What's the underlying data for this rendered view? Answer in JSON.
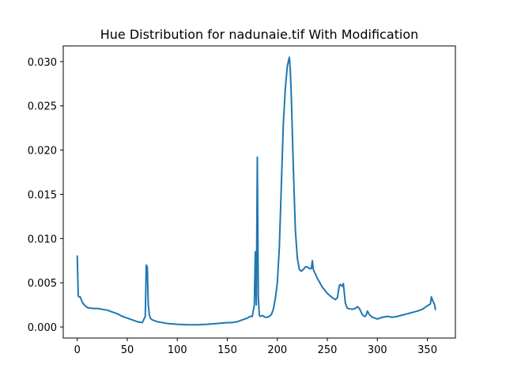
{
  "chart_data": {
    "type": "line",
    "title": "Hue Distribution for nadunaie.tif With Modification",
    "xlabel": "",
    "ylabel": "",
    "xlim": [
      -14,
      378
    ],
    "ylim": [
      -0.00125,
      0.03178
    ],
    "xticks": [
      0,
      50,
      100,
      150,
      200,
      250,
      300,
      350
    ],
    "xtick_labels": [
      "0",
      "50",
      "100",
      "150",
      "200",
      "250",
      "300",
      "350"
    ],
    "yticks": [
      0.0,
      0.005,
      0.01,
      0.015,
      0.02,
      0.025,
      0.03
    ],
    "ytick_labels": [
      "0.000",
      "0.005",
      "0.010",
      "0.015",
      "0.020",
      "0.025",
      "0.030"
    ],
    "grid": false,
    "line_color": "#1f77b4",
    "series": [
      {
        "name": "",
        "x": [
          0,
          1,
          2,
          3,
          5,
          7,
          10,
          15,
          20,
          25,
          30,
          35,
          40,
          45,
          50,
          55,
          60,
          65,
          68,
          69,
          70,
          71,
          72,
          73,
          75,
          80,
          90,
          100,
          110,
          120,
          130,
          140,
          150,
          155,
          160,
          165,
          170,
          173,
          175,
          177,
          178,
          179,
          180,
          181,
          182,
          183,
          185,
          188,
          190,
          192,
          194,
          196,
          198,
          200,
          202,
          204,
          206,
          208,
          210,
          212,
          213,
          214,
          215,
          216,
          218,
          220,
          222,
          224,
          226,
          228,
          230,
          232,
          234,
          235,
          236,
          238,
          240,
          245,
          250,
          255,
          258,
          260,
          262,
          263,
          265,
          266,
          267,
          268,
          270,
          275,
          278,
          280,
          282,
          285,
          287,
          288,
          289,
          290,
          292,
          295,
          300,
          305,
          310,
          315,
          320,
          330,
          340,
          345,
          350,
          353,
          354,
          355,
          356,
          357,
          358
        ],
        "y": [
          0.008,
          0.0035,
          0.0034,
          0.0034,
          0.0028,
          0.0025,
          0.0022,
          0.0021,
          0.0021,
          0.002,
          0.0019,
          0.0017,
          0.0015,
          0.0012,
          0.001,
          0.0008,
          0.0006,
          0.0005,
          0.0012,
          0.007,
          0.0068,
          0.0025,
          0.0014,
          0.001,
          0.0008,
          0.0006,
          0.0004,
          0.0003,
          0.00025,
          0.00025,
          0.0003,
          0.0004,
          0.0005,
          0.0005,
          0.0006,
          0.0008,
          0.001,
          0.0012,
          0.0012,
          0.0025,
          0.0085,
          0.0025,
          0.0192,
          0.0035,
          0.0013,
          0.0012,
          0.0013,
          0.0011,
          0.0011,
          0.0012,
          0.0014,
          0.002,
          0.0032,
          0.005,
          0.009,
          0.016,
          0.023,
          0.027,
          0.0295,
          0.0305,
          0.029,
          0.026,
          0.022,
          0.018,
          0.011,
          0.0078,
          0.0065,
          0.0063,
          0.0065,
          0.0068,
          0.0068,
          0.0066,
          0.0066,
          0.0075,
          0.0065,
          0.006,
          0.0055,
          0.0045,
          0.0038,
          0.0033,
          0.0031,
          0.0033,
          0.0047,
          0.0048,
          0.0046,
          0.0049,
          0.0038,
          0.0027,
          0.0021,
          0.002,
          0.0021,
          0.0023,
          0.0021,
          0.0014,
          0.0012,
          0.0012,
          0.0014,
          0.0018,
          0.0014,
          0.0011,
          0.0009,
          0.0011,
          0.0012,
          0.0011,
          0.0012,
          0.0015,
          0.0018,
          0.002,
          0.0024,
          0.0026,
          0.0034,
          0.0031,
          0.0028,
          0.0026,
          0.002
        ]
      }
    ]
  }
}
